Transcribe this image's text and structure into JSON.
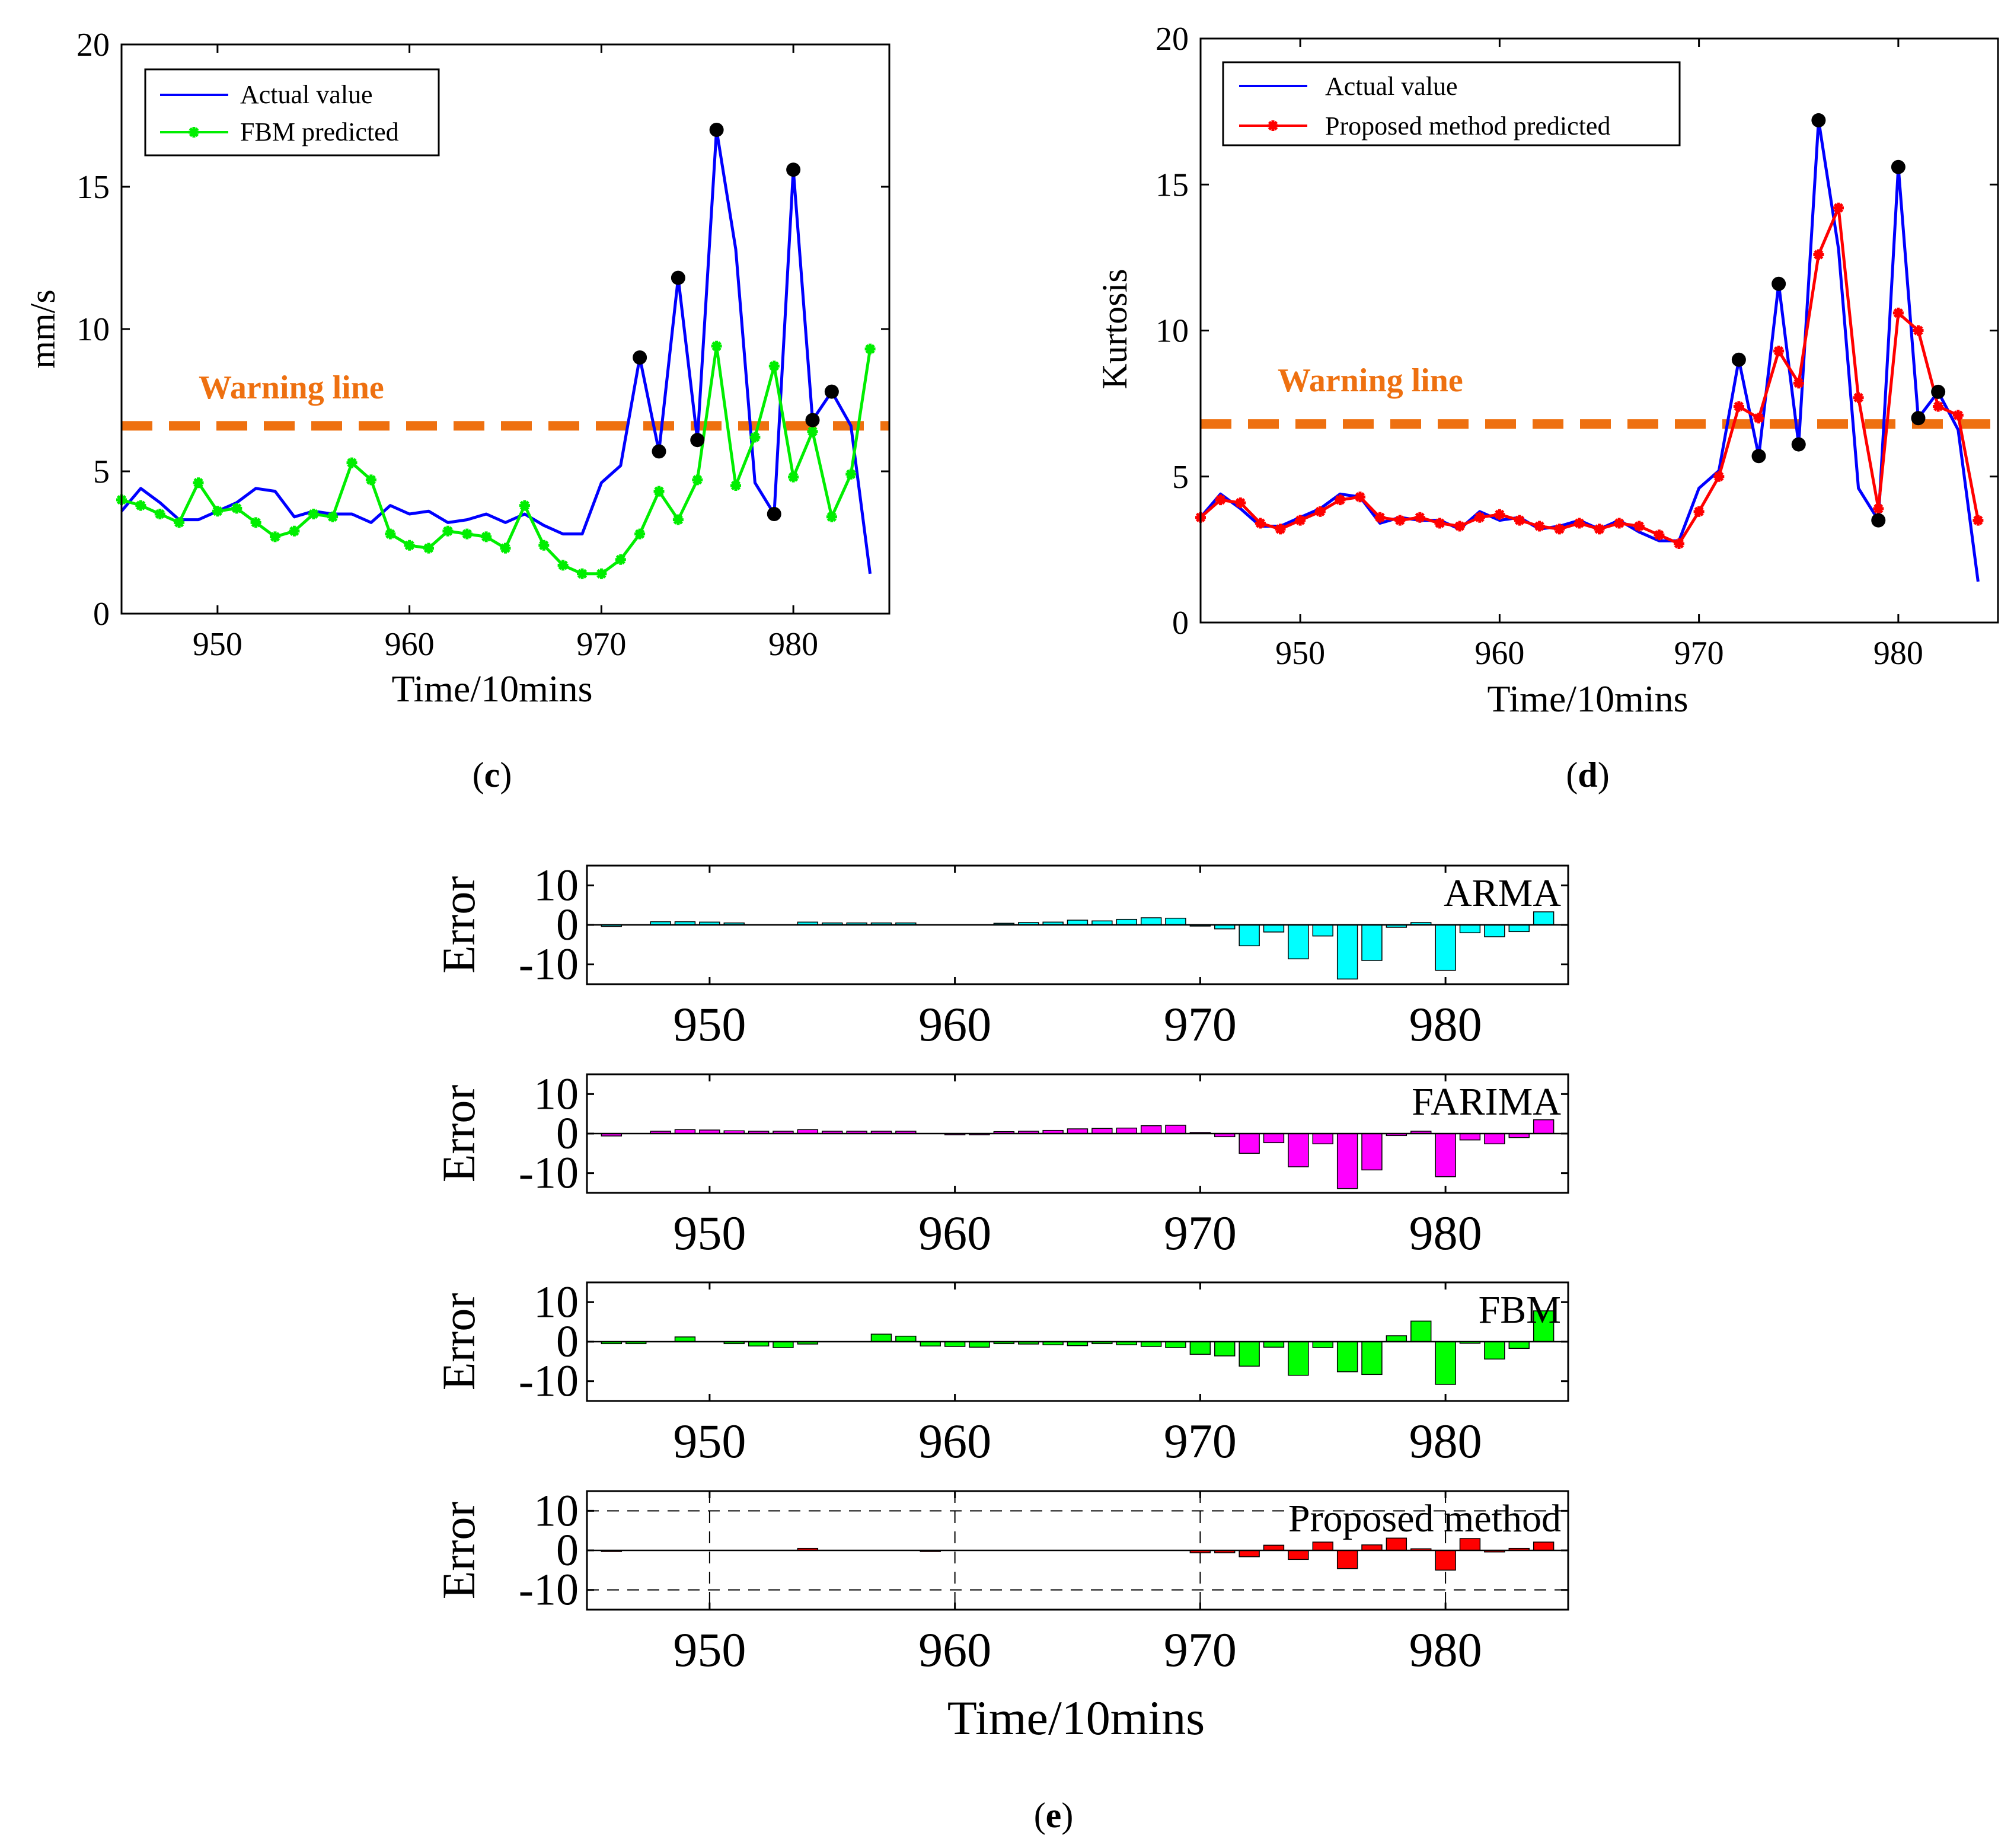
{
  "colors": {
    "actual": "#0000ff",
    "fbm": "#00ee00",
    "proposed": "#ff0000",
    "warning": "#ee7010",
    "marker": "#000000",
    "arma_bar": "#00ffff",
    "farima_bar": "#ff00ff",
    "fbm_bar": "#00ff00",
    "proposed_bar": "#ff0000"
  },
  "chart_data": [
    {
      "id": "c",
      "type": "line",
      "panel_label_open": "(",
      "panel_label_letter": "c",
      "panel_label_close": ")",
      "xlabel": "Time/10mins",
      "ylabel": "mm/s",
      "xlim": [
        945,
        985
      ],
      "ylim": [
        0,
        20
      ],
      "xticks": [
        950,
        960,
        970,
        980
      ],
      "yticks": [
        0,
        5,
        10,
        15,
        20
      ],
      "warning": {
        "label": "Warning line",
        "value": 6.6
      },
      "legend": [
        "Actual value",
        "FBM predicted"
      ],
      "series": [
        {
          "name": "Actual value",
          "color": "#0000ff",
          "marker": "none",
          "x": [
            945,
            946,
            947,
            948,
            949,
            950,
            951,
            952,
            953,
            954,
            955,
            956,
            957,
            958,
            959,
            960,
            961,
            962,
            963,
            964,
            965,
            966,
            967,
            968,
            969,
            970,
            971,
            972,
            973,
            974,
            975,
            976,
            977,
            978,
            979,
            980,
            981,
            982,
            983,
            984
          ],
          "y": [
            3.6,
            4.4,
            3.9,
            3.3,
            3.3,
            3.6,
            3.9,
            4.4,
            4.3,
            3.4,
            3.6,
            3.5,
            3.5,
            3.2,
            3.8,
            3.5,
            3.6,
            3.2,
            3.3,
            3.5,
            3.2,
            3.5,
            3.1,
            2.8,
            2.8,
            4.6,
            5.2,
            9.0,
            5.7,
            11.8,
            6.1,
            17.0,
            12.8,
            4.6,
            3.5,
            15.6,
            6.8,
            7.8,
            6.6,
            1.4
          ]
        },
        {
          "name": "FBM predicted",
          "color": "#00ee00",
          "marker": "star",
          "x": [
            945,
            946,
            947,
            948,
            949,
            950,
            951,
            952,
            953,
            954,
            955,
            956,
            957,
            958,
            959,
            960,
            961,
            962,
            963,
            964,
            965,
            966,
            967,
            968,
            969,
            970,
            971,
            972,
            973,
            974,
            975,
            976,
            977,
            978,
            979,
            980,
            981,
            982,
            983,
            984
          ],
          "y": [
            4.0,
            3.8,
            3.5,
            3.2,
            4.6,
            3.6,
            3.7,
            3.2,
            2.7,
            2.9,
            3.5,
            3.4,
            5.3,
            4.7,
            2.8,
            2.4,
            2.3,
            2.9,
            2.8,
            2.7,
            2.3,
            3.8,
            2.4,
            1.7,
            1.4,
            1.4,
            1.9,
            2.8,
            4.3,
            3.3,
            4.7,
            9.4,
            4.5,
            6.2,
            8.7,
            4.8,
            6.4,
            3.4,
            4.9,
            9.3
          ]
        }
      ],
      "peak_markers": {
        "x": [
          972,
          973,
          974,
          975,
          976,
          979,
          980,
          981,
          982
        ],
        "y": [
          9.0,
          5.7,
          11.8,
          6.1,
          17.0,
          3.5,
          15.6,
          6.8,
          7.8
        ]
      }
    },
    {
      "id": "d",
      "type": "line",
      "panel_label_open": "(",
      "panel_label_letter": "d",
      "panel_label_close": ")",
      "xlabel": "Time/10mins",
      "ylabel": "Kurtosis",
      "xlim": [
        945,
        985
      ],
      "ylim": [
        0,
        20
      ],
      "xticks": [
        950,
        960,
        970,
        980
      ],
      "yticks": [
        0,
        5,
        10,
        15,
        20
      ],
      "warning": {
        "label": "Warning line",
        "value": 6.8
      },
      "legend": [
        "Actual value",
        "Proposed method predicted"
      ],
      "series": [
        {
          "name": "Actual value",
          "color": "#0000ff",
          "marker": "none",
          "x": [
            945,
            946,
            947,
            948,
            949,
            950,
            951,
            952,
            953,
            954,
            955,
            956,
            957,
            958,
            959,
            960,
            961,
            962,
            963,
            964,
            965,
            966,
            967,
            968,
            969,
            970,
            971,
            972,
            973,
            974,
            975,
            976,
            977,
            978,
            979,
            980,
            981,
            982,
            983,
            984
          ],
          "y": [
            3.6,
            4.4,
            3.9,
            3.3,
            3.3,
            3.6,
            3.9,
            4.4,
            4.3,
            3.4,
            3.6,
            3.5,
            3.5,
            3.2,
            3.8,
            3.5,
            3.6,
            3.2,
            3.3,
            3.5,
            3.2,
            3.5,
            3.1,
            2.8,
            2.8,
            4.6,
            5.2,
            9.0,
            5.7,
            11.6,
            6.1,
            17.2,
            12.8,
            4.6,
            3.5,
            15.6,
            7.0,
            7.9,
            6.6,
            1.4
          ]
        },
        {
          "name": "Proposed method predicted",
          "color": "#ff0000",
          "marker": "star",
          "x": [
            945,
            946,
            947,
            948,
            949,
            950,
            951,
            952,
            953,
            954,
            955,
            956,
            957,
            958,
            959,
            960,
            961,
            962,
            963,
            964,
            965,
            966,
            967,
            968,
            969,
            970,
            971,
            972,
            973,
            974,
            975,
            976,
            977,
            978,
            979,
            980,
            981,
            982,
            983,
            984
          ],
          "y": [
            3.6,
            4.2,
            4.1,
            3.4,
            3.2,
            3.5,
            3.8,
            4.2,
            4.3,
            3.6,
            3.5,
            3.6,
            3.4,
            3.3,
            3.6,
            3.7,
            3.5,
            3.3,
            3.2,
            3.4,
            3.2,
            3.4,
            3.3,
            3.0,
            2.7,
            3.8,
            5.0,
            7.4,
            7.0,
            9.3,
            8.2,
            12.6,
            14.2,
            7.7,
            3.9,
            10.6,
            10.0,
            7.4,
            7.1,
            3.5
          ]
        }
      ],
      "peak_markers": {
        "x": [
          972,
          973,
          974,
          975,
          976,
          979,
          980,
          981,
          982
        ],
        "y": [
          9.0,
          5.7,
          11.6,
          6.1,
          17.2,
          3.5,
          15.6,
          7.0,
          7.9
        ]
      }
    },
    {
      "id": "e",
      "type": "bar",
      "panel_label_open": "(",
      "panel_label_letter": "e",
      "panel_label_close": ")",
      "xlabel": "Time/10mins",
      "ylabel": "Error",
      "xlim": [
        945,
        985
      ],
      "ylim": [
        -15,
        15
      ],
      "xticks": [
        950,
        960,
        970,
        980
      ],
      "yticks": [
        10,
        0,
        -10
      ],
      "x": [
        945,
        946,
        947,
        948,
        949,
        950,
        951,
        952,
        953,
        954,
        955,
        956,
        957,
        958,
        959,
        960,
        961,
        962,
        963,
        964,
        965,
        966,
        967,
        968,
        969,
        970,
        971,
        972,
        973,
        974,
        975,
        976,
        977,
        978,
        979,
        980,
        981,
        982,
        983,
        984
      ],
      "subplots": [
        {
          "name": "ARMA",
          "color": "#00ffff",
          "dashed_grid": false,
          "values": [
            0,
            -0.4,
            0,
            0.8,
            0.8,
            0.7,
            0.5,
            0,
            0,
            0.7,
            0.5,
            0.5,
            0.5,
            0.5,
            0,
            0,
            0,
            0.4,
            0.6,
            0.7,
            1.2,
            1.0,
            1.4,
            1.8,
            1.7,
            -0.3,
            -1.0,
            -5.3,
            -1.8,
            -8.6,
            -2.8,
            -13.7,
            -9.0,
            -0.6,
            0.6,
            -11.5,
            -2.0,
            -3.0,
            -1.7,
            3.3
          ]
        },
        {
          "name": "FARIMA",
          "color": "#ff00ff",
          "dashed_grid": false,
          "values": [
            0,
            -0.6,
            0,
            0.6,
            1.0,
            0.9,
            0.7,
            0.6,
            0.6,
            1.0,
            0.6,
            0.6,
            0.6,
            0.6,
            0,
            -0.3,
            -0.2,
            0.5,
            0.6,
            0.8,
            1.2,
            1.3,
            1.4,
            2.0,
            2.1,
            0.3,
            -0.8,
            -5.0,
            -2.3,
            -8.4,
            -2.6,
            -13.9,
            -9.2,
            -0.5,
            0.6,
            -10.9,
            -1.6,
            -2.6,
            -1.0,
            3.5
          ]
        },
        {
          "name": "FBM",
          "color": "#00ff00",
          "dashed_grid": false,
          "values": [
            0,
            -0.5,
            -0.5,
            0,
            1.2,
            0,
            -0.5,
            -1.1,
            -1.5,
            -0.6,
            0,
            0,
            1.9,
            1.4,
            -1.1,
            -1.2,
            -1.4,
            -0.5,
            -0.6,
            -0.8,
            -1.0,
            -0.5,
            -0.8,
            -1.2,
            -1.5,
            -3.2,
            -3.6,
            -6.2,
            -1.4,
            -8.5,
            -1.5,
            -7.6,
            -8.3,
            1.5,
            5.2,
            -10.8,
            -0.4,
            -4.4,
            -1.7,
            7.8
          ]
        },
        {
          "name": "Proposed method",
          "color": "#ff0000",
          "dashed_grid": true,
          "values": [
            0,
            -0.3,
            0,
            0,
            0,
            0,
            0,
            0,
            0,
            0.5,
            0,
            0,
            0,
            0,
            -0.3,
            0,
            0,
            0,
            0,
            0,
            0,
            0,
            0,
            0,
            0,
            -0.6,
            -0.6,
            -1.6,
            1.3,
            -2.3,
            2.1,
            -4.6,
            1.4,
            3.1,
            0.4,
            -5.0,
            3.0,
            -0.4,
            0.5,
            2.1
          ]
        }
      ]
    }
  ]
}
